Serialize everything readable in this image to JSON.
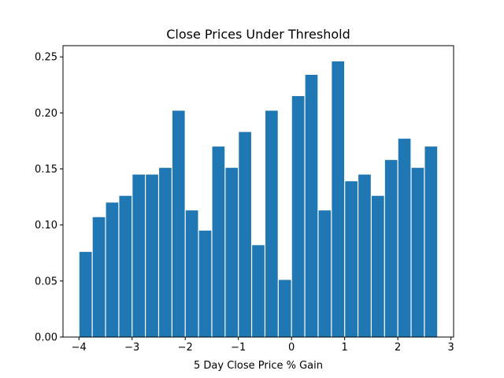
{
  "chart_data": {
    "type": "bar",
    "title": "Close Prices Under Threshold",
    "xlabel": "5 Day Close Price % Gain",
    "ylabel": "",
    "bar_color": "#1f77b4",
    "xlim": [
      -4.3,
      3.05
    ],
    "ylim": [
      0,
      0.26
    ],
    "bin_edges": [
      -4.0,
      -3.75,
      -3.5,
      -3.25,
      -3.0,
      -2.75,
      -2.5,
      -2.25,
      -2.0,
      -1.75,
      -1.5,
      -1.25,
      -1.0,
      -0.75,
      -0.5,
      -0.25,
      0.0,
      0.25,
      0.5,
      0.75,
      1.0,
      1.25,
      1.5,
      1.75,
      2.0,
      2.25,
      2.5,
      2.75
    ],
    "values": [
      0.076,
      0.107,
      0.12,
      0.126,
      0.145,
      0.145,
      0.151,
      0.202,
      0.113,
      0.095,
      0.17,
      0.151,
      0.183,
      0.082,
      0.202,
      0.051,
      0.215,
      0.234,
      0.113,
      0.246,
      0.139,
      0.145,
      0.126,
      0.158,
      0.177,
      0.151,
      0.17
    ],
    "xticks": [
      -4,
      -3,
      -2,
      -1,
      0,
      1,
      2,
      3
    ],
    "xtick_labels": [
      "−4",
      "−3",
      "−2",
      "−1",
      "0",
      "1",
      "2",
      "3"
    ],
    "yticks": [
      0.0,
      0.05,
      0.1,
      0.15,
      0.2,
      0.25
    ],
    "ytick_labels": [
      "0.00",
      "0.05",
      "0.10",
      "0.15",
      "0.20",
      "0.25"
    ],
    "grid": false
  }
}
